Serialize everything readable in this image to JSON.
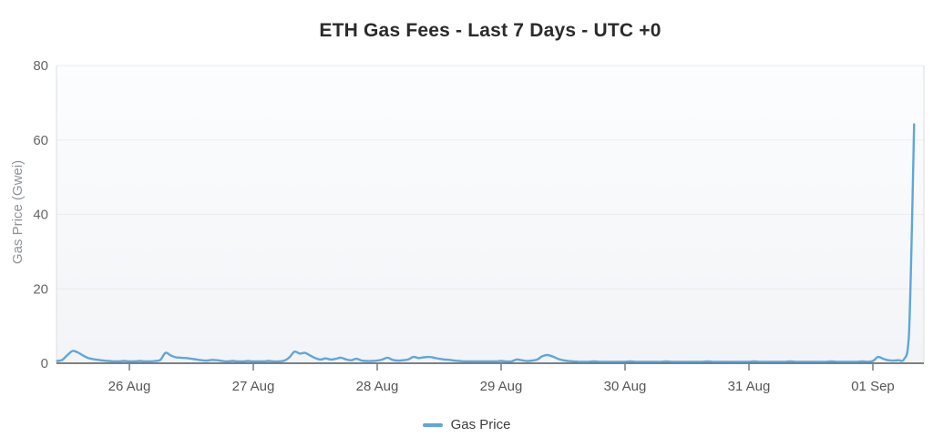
{
  "chart_data": {
    "type": "line",
    "title": "ETH Gas Fees - Last 7 Days - UTC +0",
    "xlabel": "",
    "ylabel": "Gas Price (Gwei)",
    "ylim": [
      0,
      80
    ],
    "yticks": [
      0,
      20,
      40,
      60,
      80
    ],
    "grid": "horizontal-only",
    "legend_position": "bottom-center",
    "xtick_labels": [
      "26 Aug",
      "27 Aug",
      "28 Aug",
      "29 Aug",
      "30 Aug",
      "31 Aug",
      "01 Sep"
    ],
    "xtick_hours": [
      14,
      38,
      62,
      86,
      110,
      134,
      158
    ],
    "x_unit": "hours",
    "series": [
      {
        "name": "Gas Price",
        "color": "#5ea7db",
        "x_hours_start": 0,
        "x_hours_step": 1,
        "values": [
          0.6,
          0.9,
          2.2,
          3.3,
          2.9,
          2.1,
          1.4,
          1.1,
          0.9,
          0.7,
          0.6,
          0.5,
          0.5,
          0.6,
          0.5,
          0.5,
          0.6,
          0.5,
          0.5,
          0.6,
          0.9,
          2.8,
          2.1,
          1.6,
          1.5,
          1.4,
          1.2,
          1.0,
          0.8,
          0.7,
          0.9,
          0.8,
          0.6,
          0.5,
          0.6,
          0.5,
          0.5,
          0.6,
          0.5,
          0.5,
          0.5,
          0.6,
          0.5,
          0.5,
          0.7,
          1.6,
          3.1,
          2.6,
          2.8,
          2.1,
          1.4,
          1.0,
          1.3,
          1.0,
          1.2,
          1.5,
          1.0,
          0.8,
          1.2,
          0.7,
          0.6,
          0.6,
          0.7,
          1.0,
          1.5,
          0.9,
          0.7,
          0.8,
          1.0,
          1.7,
          1.4,
          1.6,
          1.7,
          1.5,
          1.2,
          1.0,
          0.9,
          0.7,
          0.6,
          0.5,
          0.5,
          0.5,
          0.5,
          0.5,
          0.5,
          0.5,
          0.6,
          0.5,
          0.5,
          1.0,
          0.8,
          0.6,
          0.7,
          1.0,
          1.9,
          2.2,
          1.8,
          1.2,
          0.8,
          0.6,
          0.5,
          0.4,
          0.4,
          0.4,
          0.5,
          0.4,
          0.4,
          0.4,
          0.4,
          0.4,
          0.4,
          0.5,
          0.4,
          0.4,
          0.4,
          0.4,
          0.4,
          0.4,
          0.5,
          0.4,
          0.4,
          0.4,
          0.4,
          0.4,
          0.4,
          0.4,
          0.5,
          0.4,
          0.4,
          0.4,
          0.4,
          0.4,
          0.4,
          0.4,
          0.4,
          0.5,
          0.4,
          0.4,
          0.4,
          0.4,
          0.4,
          0.4,
          0.5,
          0.4,
          0.4,
          0.4,
          0.4,
          0.4,
          0.4,
          0.4,
          0.5,
          0.4,
          0.4,
          0.4,
          0.4,
          0.4,
          0.5,
          0.4,
          0.6,
          1.7,
          1.2,
          0.8,
          0.7,
          0.8,
          1.0,
          8.0,
          64.2
        ]
      }
    ]
  },
  "legend": {
    "label": "Gas Price"
  },
  "colors": {
    "accent_blue": "#5ea7db",
    "title_text": "#2b2b2b",
    "tick_text": "#666666",
    "x_tick_text": "#565656",
    "axis_title_text": "#8f9398",
    "grid_line": "#ececec",
    "axis_line_dark": "#55585c",
    "axis_line_light": "#dcdee1",
    "plot_bg_top": "#fcfdfe",
    "plot_bg_bottom": "#f2f4f7"
  }
}
